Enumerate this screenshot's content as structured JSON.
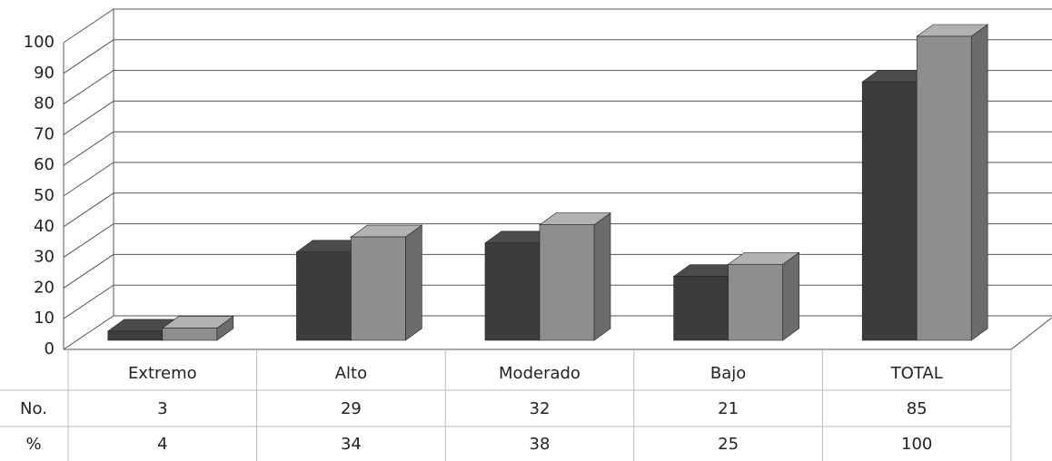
{
  "chart_data": {
    "type": "bar3d",
    "categories": [
      "Extremo",
      "Alto",
      "Moderado",
      "Bajo",
      "TOTAL"
    ],
    "series": [
      {
        "name": "No.",
        "color": "#3c3c3c",
        "values": [
          3,
          29,
          32,
          21,
          85
        ]
      },
      {
        "name": "%",
        "color": "#8e8e8e",
        "values": [
          4,
          34,
          38,
          25,
          100
        ]
      }
    ],
    "ylim": [
      0,
      100
    ],
    "yticks": [
      0,
      10,
      20,
      30,
      40,
      50,
      60,
      70,
      80,
      90,
      100
    ],
    "grid": true
  }
}
